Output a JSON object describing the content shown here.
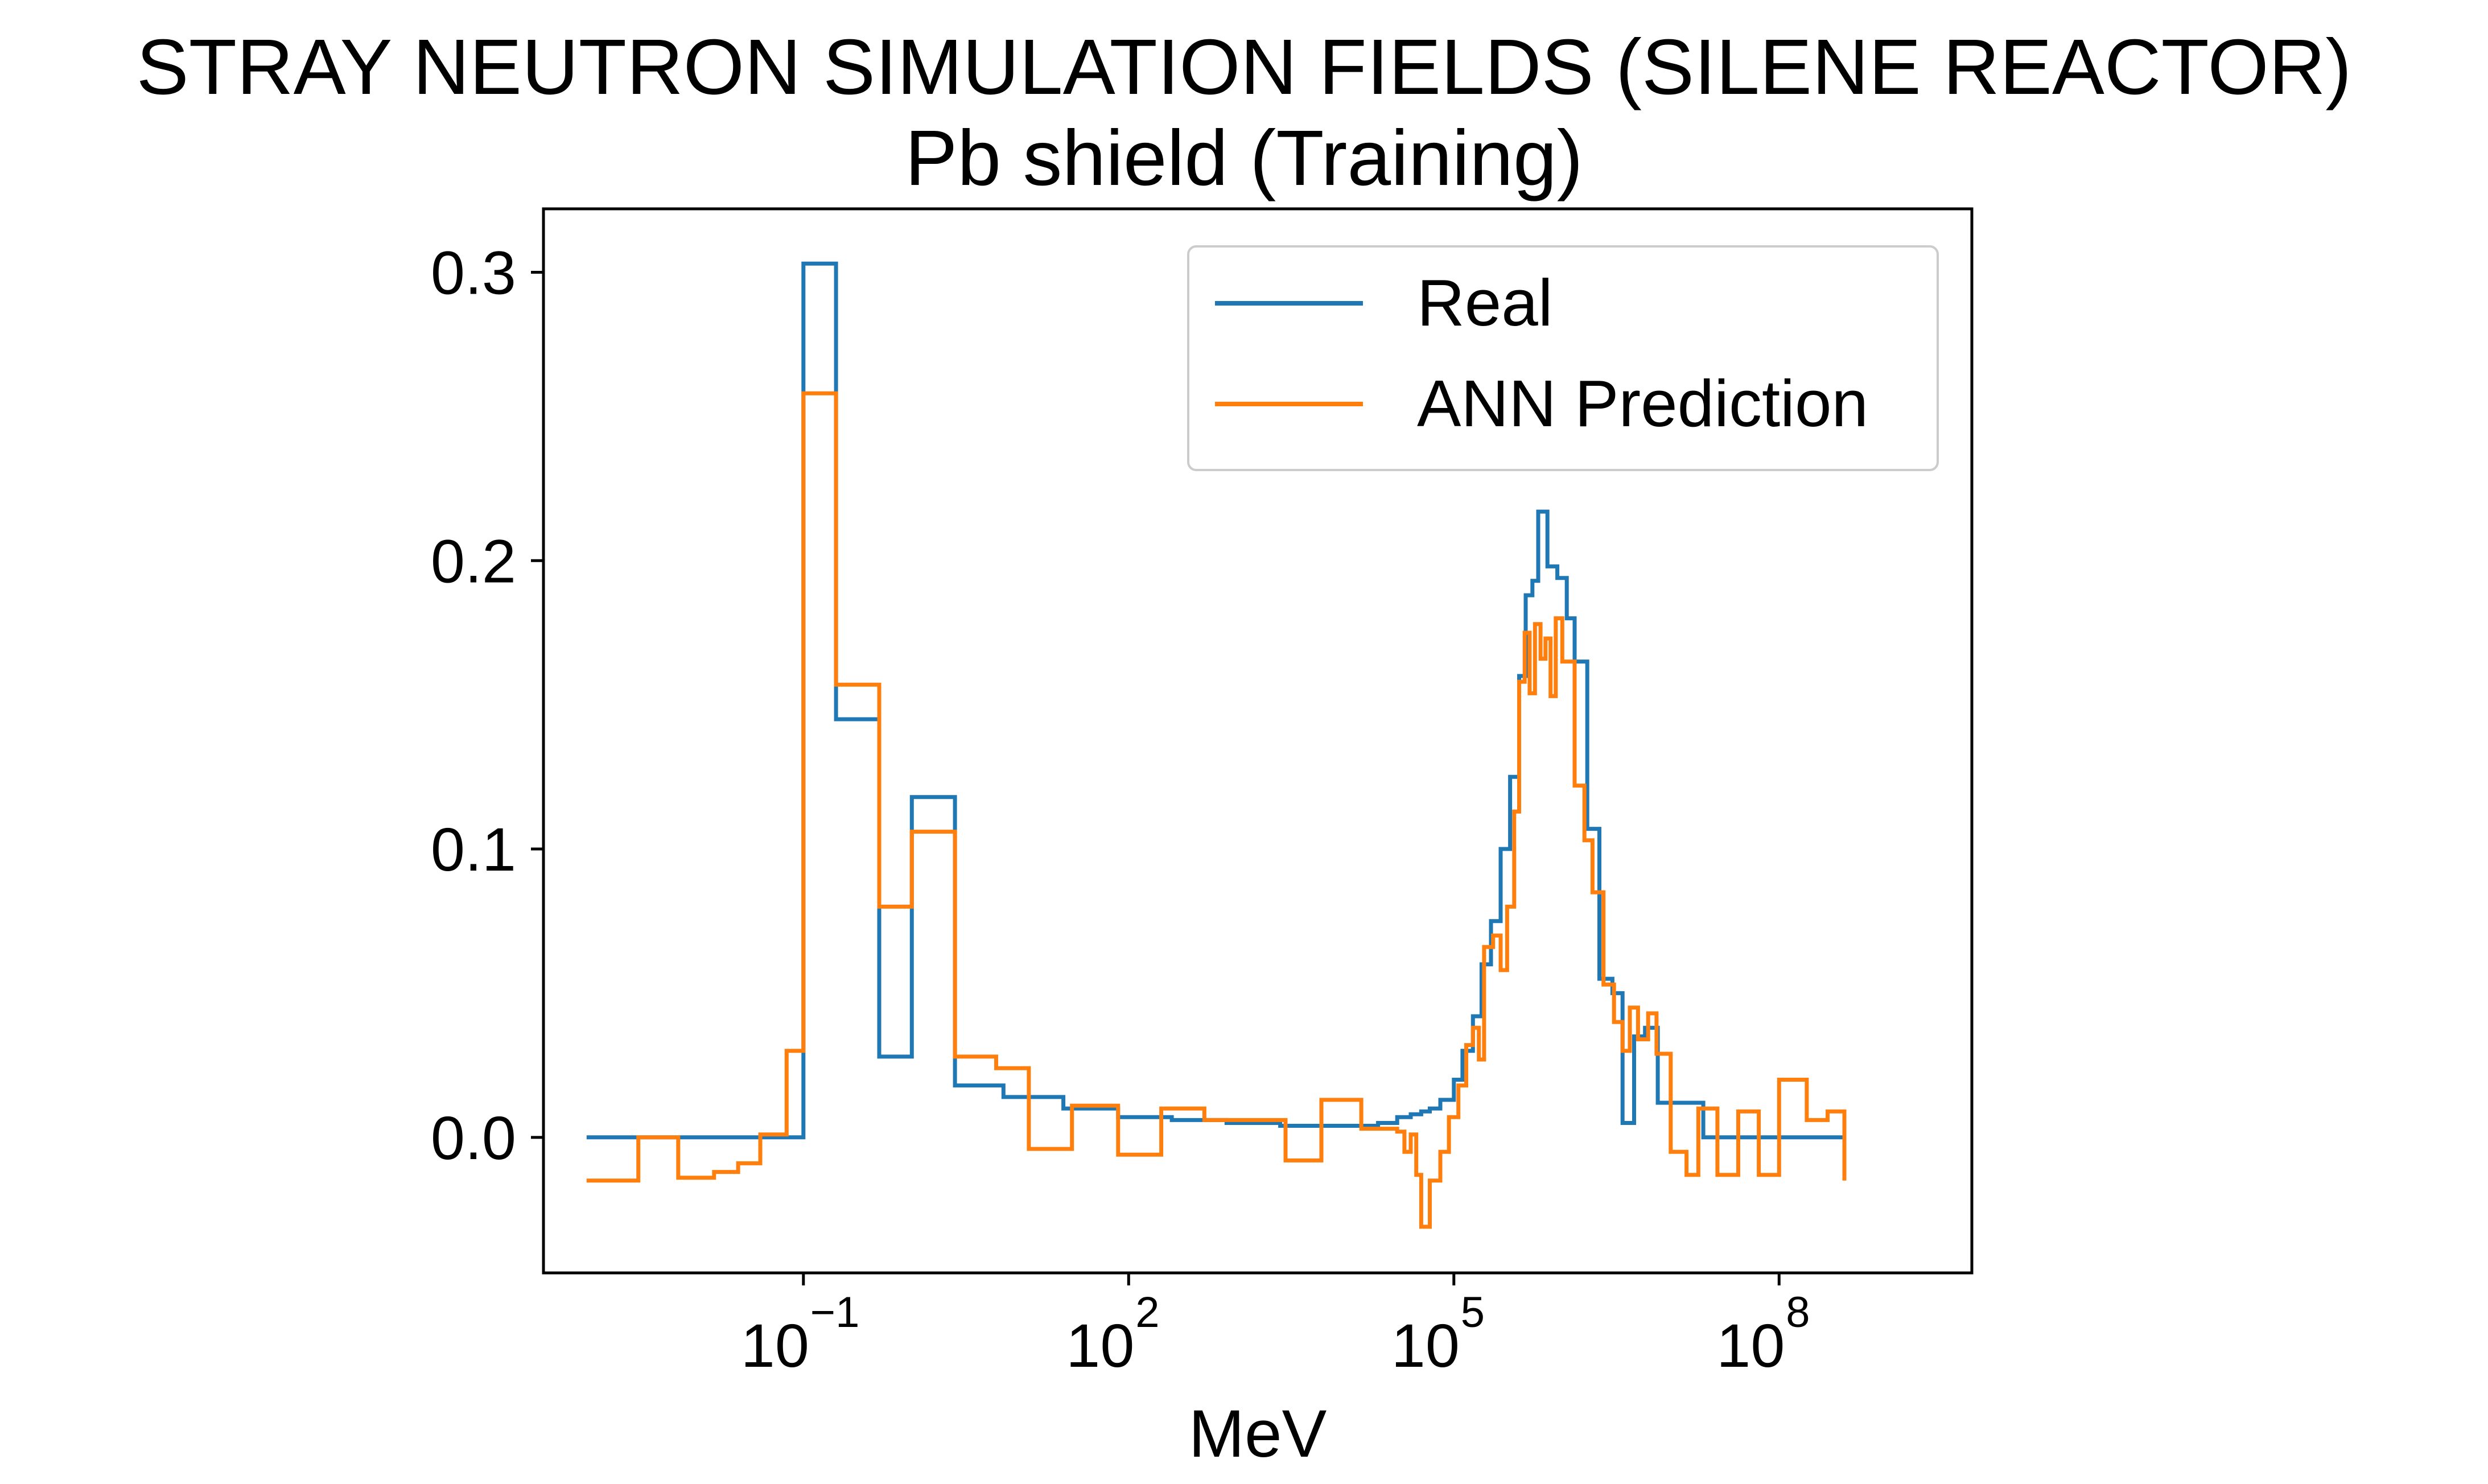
{
  "chart_data": {
    "type": "line",
    "step": "post",
    "title": "STRAY NEUTRON SIMULATION FIELDS (SILENE REACTOR)",
    "subtitle": "Pb shield (Training)",
    "xlabel": "MeV",
    "ylabel": "",
    "xscale": "log",
    "xlim": [
      0.0004,
      6000000000.0
    ],
    "ylim": [
      -0.047,
      0.322
    ],
    "x_ticks": [
      {
        "value": 0.1,
        "base": "10",
        "exp": "−1"
      },
      {
        "value": 100,
        "base": "10",
        "exp": "2"
      },
      {
        "value": 100000,
        "base": "10",
        "exp": "5"
      },
      {
        "value": 100000000,
        "base": "10",
        "exp": "8"
      }
    ],
    "y_ticks": [
      {
        "value": 0.0,
        "label": "0.0"
      },
      {
        "value": 0.1,
        "label": "0.1"
      },
      {
        "value": 0.2,
        "label": "0.2"
      },
      {
        "value": 0.3,
        "label": "0.3"
      }
    ],
    "grid": false,
    "legend_position": "top-right",
    "series": [
      {
        "name": "Real",
        "color": "#1f77b4",
        "points": [
          [
            0.001,
            0.0
          ],
          [
            0.1,
            0.303
          ],
          [
            0.2,
            0.145
          ],
          [
            0.5,
            0.028
          ],
          [
            1.0,
            0.118
          ],
          [
            2.5,
            0.018
          ],
          [
            7,
            0.014
          ],
          [
            25,
            0.01
          ],
          [
            80,
            0.007
          ],
          [
            250,
            0.006
          ],
          [
            800,
            0.005
          ],
          [
            2500,
            0.004
          ],
          [
            8000,
            0.004
          ],
          [
            20000,
            0.005
          ],
          [
            30000,
            0.007
          ],
          [
            40000,
            0.008
          ],
          [
            50000,
            0.009
          ],
          [
            60000,
            0.01
          ],
          [
            75000,
            0.013
          ],
          [
            100000,
            0.02
          ],
          [
            120000,
            0.03
          ],
          [
            150000,
            0.042
          ],
          [
            180000,
            0.06
          ],
          [
            220000,
            0.075
          ],
          [
            270000,
            0.1
          ],
          [
            330000,
            0.125
          ],
          [
            400000,
            0.16
          ],
          [
            460000,
            0.188
          ],
          [
            530000,
            0.193
          ],
          [
            600000,
            0.217
          ],
          [
            730000,
            0.198
          ],
          [
            900000,
            0.194
          ],
          [
            1100000,
            0.18
          ],
          [
            1300000,
            0.165
          ],
          [
            1700000,
            0.107
          ],
          [
            2200000,
            0.055
          ],
          [
            2900000,
            0.05
          ],
          [
            3600000,
            0.005
          ],
          [
            4600000,
            0.035
          ],
          [
            5800000,
            0.038
          ],
          [
            7600000,
            0.012
          ],
          [
            20000000,
            0.0
          ],
          [
            400000000,
            0.0
          ]
        ]
      },
      {
        "name": "ANN Prediction",
        "color": "#ff7f0e",
        "points": [
          [
            0.001,
            -0.015
          ],
          [
            0.003,
            0.0
          ],
          [
            0.007,
            -0.014
          ],
          [
            0.015,
            -0.012
          ],
          [
            0.025,
            -0.009
          ],
          [
            0.04,
            0.001
          ],
          [
            0.07,
            0.03
          ],
          [
            0.1,
            0.258
          ],
          [
            0.2,
            0.157
          ],
          [
            0.5,
            0.08
          ],
          [
            1.0,
            0.106
          ],
          [
            2.5,
            0.028
          ],
          [
            6,
            0.024
          ],
          [
            12,
            -0.004
          ],
          [
            30,
            0.011
          ],
          [
            80,
            -0.006
          ],
          [
            200,
            0.01
          ],
          [
            500,
            0.006
          ],
          [
            1200,
            0.006
          ],
          [
            2800,
            -0.008
          ],
          [
            6000,
            0.013
          ],
          [
            14000,
            0.003
          ],
          [
            30000,
            0.002
          ],
          [
            35000,
            -0.005
          ],
          [
            40000,
            0.001
          ],
          [
            45000,
            -0.013
          ],
          [
            50000,
            -0.031
          ],
          [
            60000,
            -0.015
          ],
          [
            75000,
            -0.005
          ],
          [
            90000,
            0.007
          ],
          [
            110000,
            0.018
          ],
          [
            130000,
            0.032
          ],
          [
            150000,
            0.038
          ],
          [
            170000,
            0.027
          ],
          [
            190000,
            0.066
          ],
          [
            230000,
            0.07
          ],
          [
            270000,
            0.058
          ],
          [
            310000,
            0.08
          ],
          [
            360000,
            0.113
          ],
          [
            400000,
            0.158
          ],
          [
            450000,
            0.175
          ],
          [
            500000,
            0.154
          ],
          [
            560000,
            0.178
          ],
          [
            630000,
            0.166
          ],
          [
            700000,
            0.173
          ],
          [
            780000,
            0.153
          ],
          [
            870000,
            0.18
          ],
          [
            1000000,
            0.165
          ],
          [
            1300000,
            0.122
          ],
          [
            1600000,
            0.103
          ],
          [
            1900000,
            0.085
          ],
          [
            2400000,
            0.053
          ],
          [
            3000000,
            0.04
          ],
          [
            3600000,
            0.03
          ],
          [
            4200000,
            0.045
          ],
          [
            5000000,
            0.034
          ],
          [
            6200000,
            0.043
          ],
          [
            7400000,
            0.029
          ],
          [
            10000000,
            -0.005
          ],
          [
            14000000,
            -0.013
          ],
          [
            18000000,
            0.01
          ],
          [
            27000000,
            -0.013
          ],
          [
            42000000,
            0.009
          ],
          [
            65000000,
            -0.013
          ],
          [
            100000000,
            0.02
          ],
          [
            180000000,
            0.006
          ],
          [
            280000000,
            0.009
          ],
          [
            400000000,
            -0.015
          ]
        ]
      }
    ]
  }
}
